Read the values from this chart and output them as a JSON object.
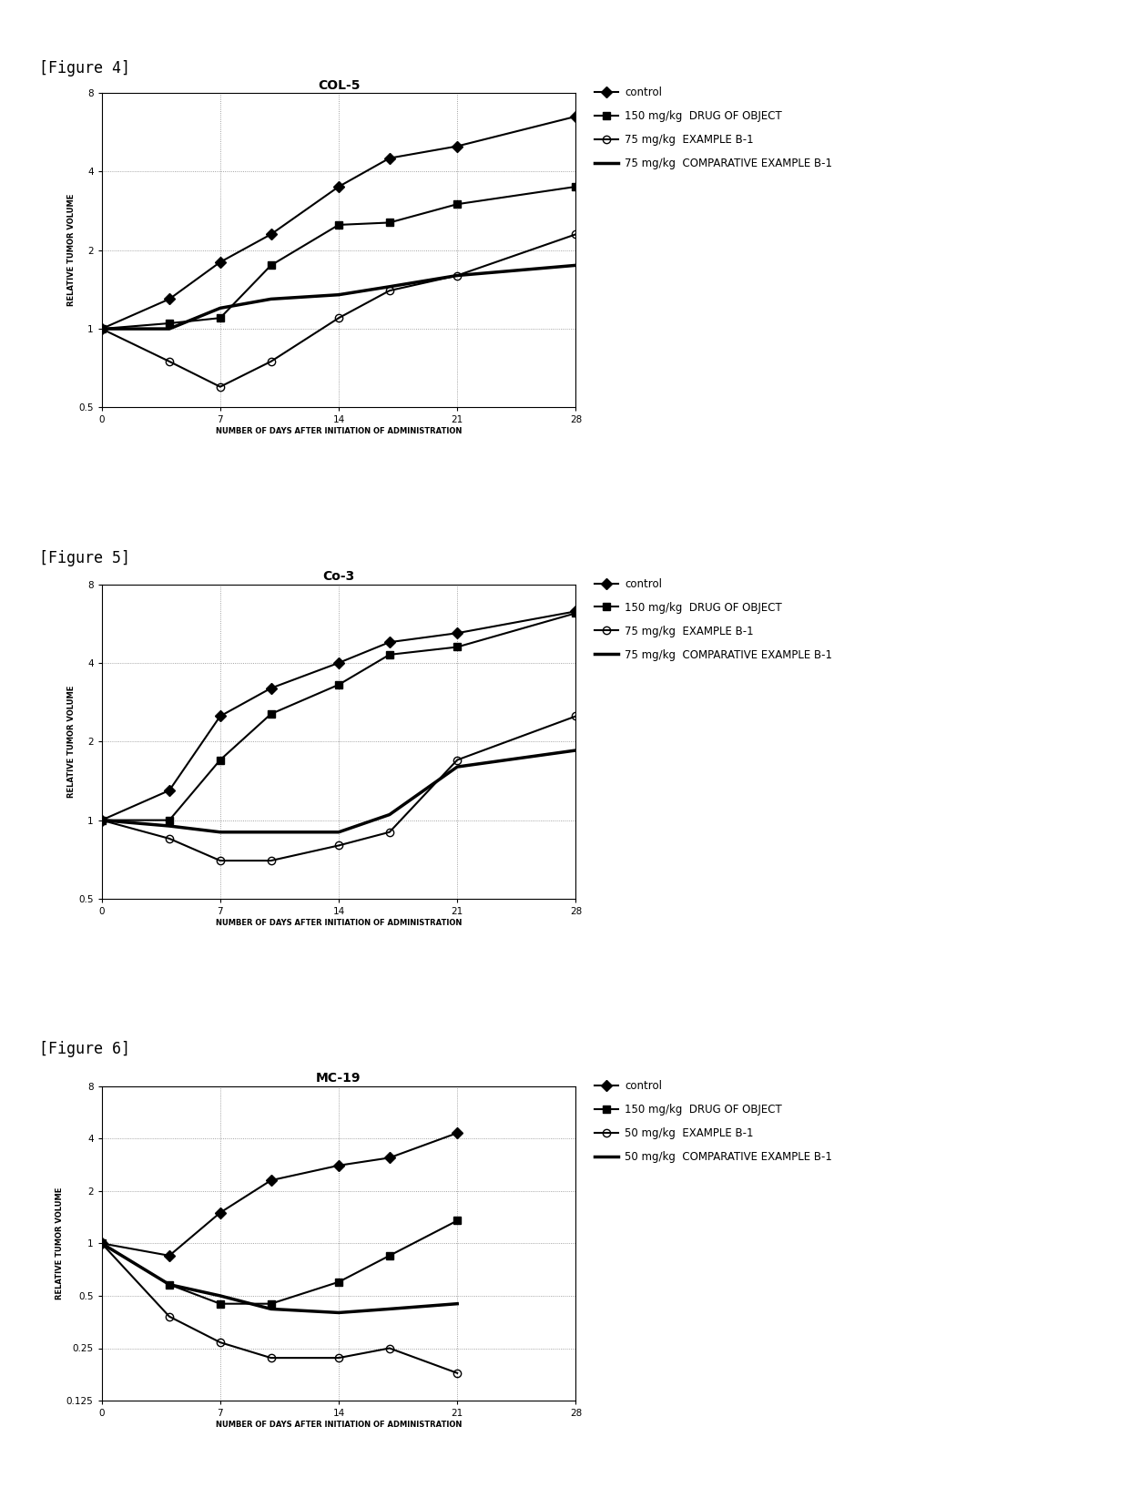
{
  "fig4": {
    "title": "COL-5",
    "title_fontsize": 10,
    "title_fontweight": "bold",
    "xlabel": "NUMBER OF DAYS AFTER INITIATION OF ADMINISTRATION",
    "ylabel": "RELATIVE TUMOR VOLUME",
    "xlim": [
      0,
      28
    ],
    "ylim": [
      0.5,
      8
    ],
    "xticks": [
      0,
      7,
      14,
      21,
      28
    ],
    "yticks": [
      0.5,
      1,
      2,
      4,
      8
    ],
    "series": [
      {
        "label": "control",
        "x": [
          0,
          4,
          7,
          10,
          14,
          17,
          21,
          28
        ],
        "y": [
          1,
          1.3,
          1.8,
          2.3,
          3.5,
          4.5,
          5.0,
          6.5
        ],
        "marker": "D",
        "marker_size": 6,
        "linestyle": "-",
        "linewidth": 1.5,
        "color": "#000000",
        "fillstyle": "full"
      },
      {
        "label": "150 mg/kg  DRUG OF OBJECT",
        "x": [
          0,
          4,
          7,
          10,
          14,
          17,
          21,
          28
        ],
        "y": [
          1,
          1.05,
          1.1,
          1.75,
          2.5,
          2.55,
          3.0,
          3.5
        ],
        "marker": "s",
        "marker_size": 6,
        "linestyle": "-",
        "linewidth": 1.5,
        "color": "#000000",
        "fillstyle": "full"
      },
      {
        "label": "75 mg/kg  EXAMPLE B-1",
        "x": [
          0,
          4,
          7,
          10,
          14,
          17,
          21,
          28
        ],
        "y": [
          1,
          0.75,
          0.6,
          0.75,
          1.1,
          1.4,
          1.6,
          2.3
        ],
        "marker": "o",
        "marker_size": 6,
        "linestyle": "-",
        "linewidth": 1.5,
        "color": "#000000",
        "fillstyle": "none"
      },
      {
        "label": "75 mg/kg  COMPARATIVE EXAMPLE B-1",
        "x": [
          0,
          4,
          7,
          10,
          14,
          17,
          21,
          28
        ],
        "y": [
          1,
          1.0,
          1.2,
          1.3,
          1.35,
          1.45,
          1.6,
          1.75
        ],
        "marker": "none",
        "marker_size": 0,
        "linestyle": "-",
        "linewidth": 2.5,
        "color": "#000000",
        "fillstyle": "full"
      }
    ]
  },
  "fig5": {
    "title": "Co-3",
    "title_fontsize": 10,
    "title_fontweight": "bold",
    "xlabel": "NUMBER OF DAYS AFTER INITIATION OF ADMINISTRATION",
    "ylabel": "RELATIVE TUMOR VOLUME",
    "xlim": [
      0,
      28
    ],
    "ylim": [
      0.5,
      8
    ],
    "xticks": [
      0,
      7,
      14,
      21,
      28
    ],
    "yticks": [
      0.5,
      1,
      2,
      4,
      8
    ],
    "series": [
      {
        "label": "control",
        "x": [
          0,
          4,
          7,
          10,
          14,
          17,
          21,
          28
        ],
        "y": [
          1,
          1.3,
          2.5,
          3.2,
          4.0,
          4.8,
          5.2,
          6.3
        ],
        "marker": "D",
        "marker_size": 6,
        "linestyle": "-",
        "linewidth": 1.5,
        "color": "#000000",
        "fillstyle": "full"
      },
      {
        "label": "150 mg/kg  DRUG OF OBJECT",
        "x": [
          0,
          4,
          7,
          10,
          14,
          17,
          21,
          28
        ],
        "y": [
          1,
          1.0,
          1.7,
          2.55,
          3.3,
          4.3,
          4.6,
          6.2
        ],
        "marker": "s",
        "marker_size": 6,
        "linestyle": "-",
        "linewidth": 1.5,
        "color": "#000000",
        "fillstyle": "full"
      },
      {
        "label": "75 mg/kg  EXAMPLE B-1",
        "x": [
          0,
          4,
          7,
          10,
          14,
          17,
          21,
          28
        ],
        "y": [
          1,
          0.85,
          0.7,
          0.7,
          0.8,
          0.9,
          1.7,
          2.5
        ],
        "marker": "o",
        "marker_size": 6,
        "linestyle": "-",
        "linewidth": 1.5,
        "color": "#000000",
        "fillstyle": "none"
      },
      {
        "label": "75 mg/kg  COMPARATIVE EXAMPLE B-1",
        "x": [
          0,
          4,
          7,
          10,
          14,
          17,
          21,
          28
        ],
        "y": [
          1,
          0.95,
          0.9,
          0.9,
          0.9,
          1.05,
          1.6,
          1.85
        ],
        "marker": "none",
        "marker_size": 0,
        "linestyle": "-",
        "linewidth": 2.5,
        "color": "#000000",
        "fillstyle": "full"
      }
    ]
  },
  "fig6": {
    "title": "MC-19",
    "title_fontsize": 10,
    "title_fontweight": "bold",
    "xlabel": "NUMBER OF DAYS AFTER INITIATION OF ADMINISTRATION",
    "ylabel": "RELATIVE TUMOR VOLUME",
    "xlim": [
      0,
      28
    ],
    "ylim": [
      0.125,
      8
    ],
    "xticks": [
      0,
      7,
      14,
      21,
      28
    ],
    "yticks": [
      0.125,
      0.25,
      0.5,
      1,
      2,
      4,
      8
    ],
    "series": [
      {
        "label": "control",
        "x": [
          0,
          4,
          7,
          10,
          14,
          17,
          21
        ],
        "y": [
          1,
          0.85,
          1.5,
          2.3,
          2.8,
          3.1,
          4.3
        ],
        "marker": "D",
        "marker_size": 6,
        "linestyle": "-",
        "linewidth": 1.5,
        "color": "#000000",
        "fillstyle": "full"
      },
      {
        "label": "150 mg/kg  DRUG OF OBJECT",
        "x": [
          0,
          4,
          7,
          10,
          14,
          17,
          21
        ],
        "y": [
          1,
          0.58,
          0.45,
          0.45,
          0.6,
          0.85,
          1.35
        ],
        "marker": "s",
        "marker_size": 6,
        "linestyle": "-",
        "linewidth": 1.5,
        "color": "#000000",
        "fillstyle": "full"
      },
      {
        "label": "50 mg/kg  EXAMPLE B-1",
        "x": [
          0,
          4,
          7,
          10,
          14,
          17,
          21
        ],
        "y": [
          1,
          0.38,
          0.27,
          0.22,
          0.22,
          0.25,
          0.18
        ],
        "marker": "o",
        "marker_size": 6,
        "linestyle": "-",
        "linewidth": 1.5,
        "color": "#000000",
        "fillstyle": "none"
      },
      {
        "label": "50 mg/kg  COMPARATIVE EXAMPLE B-1",
        "x": [
          0,
          4,
          7,
          10,
          14,
          17,
          21
        ],
        "y": [
          1,
          0.58,
          0.5,
          0.42,
          0.4,
          0.42,
          0.45
        ],
        "marker": "none",
        "marker_size": 0,
        "linestyle": "-",
        "linewidth": 2.5,
        "color": "#000000",
        "fillstyle": "full"
      }
    ]
  },
  "figure_labels": [
    "[Figure 4]",
    "[Figure 5]",
    "[Figure 6]"
  ],
  "bg_color": "#ffffff"
}
